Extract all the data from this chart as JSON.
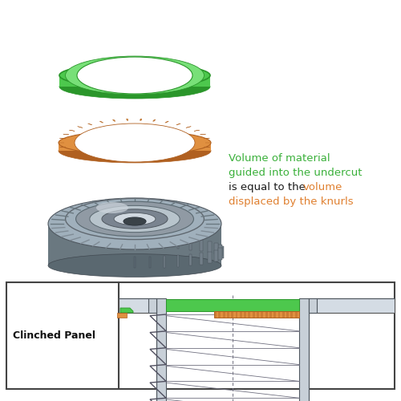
{
  "bg_color": "#ffffff",
  "green_color": "#4dc84d",
  "green_dark": "#2a962a",
  "green_inner": "#78e078",
  "orange_color": "#e09040",
  "orange_dark": "#b06020",
  "gray_body": "#8090a0",
  "gray_top": "#a0b0bc",
  "gray_inner1": "#909aa4",
  "gray_inner2": "#7a8490",
  "gray_highlight": "#ccd4dc",
  "gray_shadow": "#606870",
  "gray_side": "#6a7880",
  "text_green": "#3ab03a",
  "text_orange": "#e08030",
  "text_black": "#1a1a1a",
  "line_color": "#555566",
  "panel_label": "Clinched Panel",
  "text_line1": "Volume of material",
  "text_line2": "guided into the undercut",
  "text_line3a": "is equal to the ",
  "text_line3b": "volume",
  "text_line4": "displaced by the knurls",
  "figsize": [
    5.0,
    5.0
  ],
  "dpi": 100
}
